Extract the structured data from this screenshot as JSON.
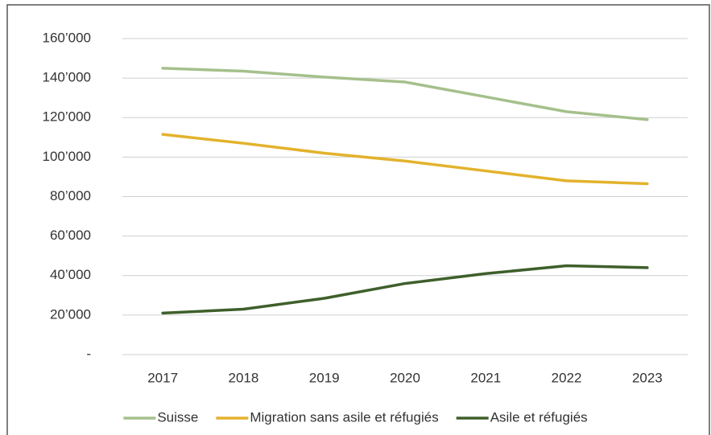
{
  "chart_data": {
    "type": "line",
    "categories": [
      "2017",
      "2018",
      "2019",
      "2020",
      "2021",
      "2022",
      "2023"
    ],
    "series": [
      {
        "name": "Suisse",
        "color": "#a5c08c",
        "values": [
          145000,
          143500,
          140500,
          138000,
          130500,
          123000,
          119000
        ]
      },
      {
        "name": "Migration sans asile et réfugiés",
        "color": "#e3b22c",
        "values": [
          111500,
          107000,
          102000,
          98000,
          93000,
          88000,
          86500
        ]
      },
      {
        "name": "Asile et réfugiés",
        "color": "#3f5f2b",
        "values": [
          21000,
          23000,
          28500,
          36000,
          41000,
          45000,
          44000
        ]
      }
    ],
    "ylim": [
      0,
      160000
    ],
    "yticks": [
      {
        "value": 0,
        "label": "-"
      },
      {
        "value": 20000,
        "label": "20’000"
      },
      {
        "value": 40000,
        "label": "40’000"
      },
      {
        "value": 60000,
        "label": "60’000"
      },
      {
        "value": 80000,
        "label": "80’000"
      },
      {
        "value": 100000,
        "label": "100’000"
      },
      {
        "value": 120000,
        "label": "120’000"
      },
      {
        "value": 140000,
        "label": "140’000"
      },
      {
        "value": 160000,
        "label": "160’000"
      }
    ],
    "grid": true,
    "legend": "bottom"
  }
}
